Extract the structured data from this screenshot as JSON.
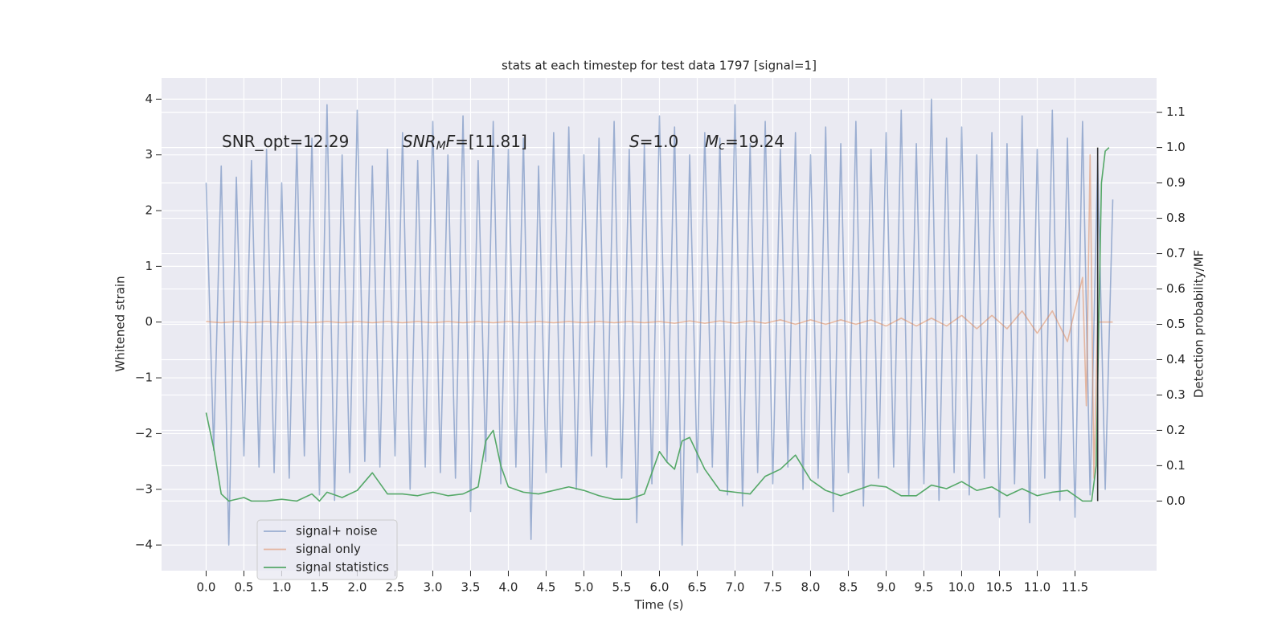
{
  "chart_data": {
    "type": "line",
    "title": "stats at each timestep for test data 1797 [signal=1]",
    "xlabel": "Time (s)",
    "ylabel": "Whitened strain",
    "y2label": "Detection probability/MF",
    "grid": true,
    "legend": "lower left",
    "xlim": [
      -0.59,
      12.58
    ],
    "ylim": [
      -4.46,
      4.38
    ],
    "y2lim": [
      -0.197,
      1.197
    ],
    "xticks": [
      {
        "value": 0,
        "label": "0.0"
      },
      0.5,
      {
        "value": 1,
        "label": "1.0"
      },
      1.5,
      {
        "value": 2,
        "label": "2.0"
      },
      2.5,
      {
        "value": 3,
        "label": "3.0"
      },
      3.5,
      {
        "value": 4,
        "label": "4.0"
      },
      4.5,
      {
        "value": 5,
        "label": "5.0"
      },
      5.5,
      {
        "value": 6,
        "label": "6.0"
      },
      6.5,
      {
        "value": 7,
        "label": "7.0"
      },
      7.5,
      {
        "value": 8,
        "label": "8.0"
      },
      8.5,
      {
        "value": 9,
        "label": "9.0"
      },
      9.5,
      {
        "value": 10,
        "label": "10.0"
      },
      10.5,
      {
        "value": 11,
        "label": "11.0"
      },
      11.5
    ],
    "yticks": [
      {
        "value": -4,
        "label": "−4"
      },
      {
        "value": -3,
        "label": "−3"
      },
      {
        "value": -2,
        "label": "−2"
      },
      {
        "value": -1,
        "label": "−1"
      },
      0,
      1,
      2,
      3,
      4
    ],
    "y2ticks": [
      {
        "value": 0,
        "label": "0.0"
      },
      0.1,
      0.2,
      0.3,
      0.4,
      0.5,
      0.6,
      0.7,
      0.8,
      0.9,
      {
        "value": 1,
        "label": "1.0"
      },
      1.1
    ],
    "series": [
      {
        "name": "signal+ noise",
        "color": "#4c72b0",
        "alpha": 0.5,
        "x": [
          0,
          0.1,
          0.2,
          0.3,
          0.4,
          0.5,
          0.6,
          0.7,
          0.8,
          0.9,
          1,
          1.1,
          1.2,
          1.3,
          1.4,
          1.5,
          1.6,
          1.7,
          1.8,
          1.9,
          2,
          2.1,
          2.2,
          2.3,
          2.4,
          2.5,
          2.6,
          2.7,
          2.8,
          2.9,
          3,
          3.1,
          3.2,
          3.3,
          3.4,
          3.5,
          3.6,
          3.7,
          3.8,
          3.9,
          4,
          4.1,
          4.2,
          4.3,
          4.4,
          4.5,
          4.6,
          4.7,
          4.8,
          4.9,
          5,
          5.1,
          5.2,
          5.3,
          5.4,
          5.5,
          5.6,
          5.7,
          5.8,
          5.9,
          6,
          6.1,
          6.2,
          6.3,
          6.4,
          6.5,
          6.6,
          6.7,
          6.8,
          6.9,
          7,
          7.1,
          7.2,
          7.3,
          7.4,
          7.5,
          7.6,
          7.7,
          7.8,
          7.9,
          8,
          8.1,
          8.2,
          8.3,
          8.4,
          8.5,
          8.6,
          8.7,
          8.8,
          8.9,
          9,
          9.1,
          9.2,
          9.3,
          9.4,
          9.5,
          9.6,
          9.7,
          9.8,
          9.9,
          10,
          10.1,
          10.2,
          10.3,
          10.4,
          10.5,
          10.6,
          10.7,
          10.8,
          10.9,
          11,
          11.1,
          11.2,
          11.3,
          11.4,
          11.5,
          11.6,
          11.7,
          11.8,
          11.9,
          12
        ],
        "values": [
          2.5,
          -2.3,
          2.8,
          -4.0,
          2.6,
          -2.4,
          2.9,
          -2.6,
          3.1,
          -2.7,
          2.5,
          -2.8,
          3.2,
          -2.4,
          3.3,
          -3.1,
          3.9,
          -3.2,
          3.0,
          -2.7,
          3.8,
          -2.5,
          2.8,
          -2.6,
          3.1,
          -2.4,
          3.4,
          -3.0,
          2.9,
          -2.6,
          3.6,
          -2.7,
          3.0,
          -2.8,
          3.7,
          -3.4,
          2.9,
          -2.5,
          3.6,
          -2.9,
          3.1,
          -2.6,
          3.3,
          -3.9,
          2.8,
          -2.7,
          3.4,
          -2.6,
          3.5,
          -3.0,
          3.0,
          -2.4,
          3.3,
          -2.6,
          3.6,
          -2.8,
          3.1,
          -3.6,
          3.2,
          -2.9,
          3.7,
          -2.5,
          3.5,
          -4.0,
          3.0,
          -2.7,
          3.4,
          -2.6,
          3.3,
          -3.1,
          3.9,
          -3.3,
          3.2,
          -2.7,
          3.6,
          -2.9,
          3.1,
          -2.6,
          3.4,
          -3.0,
          3.0,
          -2.8,
          3.5,
          -3.4,
          3.2,
          -2.7,
          3.6,
          -3.3,
          3.1,
          -2.8,
          3.4,
          -2.6,
          3.8,
          -3.1,
          3.2,
          -2.9,
          4.0,
          -3.2,
          3.3,
          -2.7,
          3.5,
          -3.1,
          3.0,
          -2.8,
          3.4,
          -3.5,
          3.2,
          -2.9,
          3.7,
          -3.6,
          3.1,
          -2.8,
          3.8,
          -3.2,
          3.3,
          -3.5,
          3.6,
          -3.1,
          2.9,
          -3.0,
          2.2
        ]
      },
      {
        "name": "signal only",
        "color": "#dd8452",
        "alpha": 0.5,
        "x": [
          0,
          0.2,
          0.4,
          0.6,
          0.8,
          1,
          1.2,
          1.4,
          1.6,
          1.8,
          2,
          2.2,
          2.4,
          2.6,
          2.8,
          3,
          3.2,
          3.4,
          3.6,
          3.8,
          4,
          4.2,
          4.4,
          4.6,
          4.8,
          5,
          5.2,
          5.4,
          5.6,
          5.8,
          6,
          6.2,
          6.4,
          6.6,
          6.8,
          7,
          7.2,
          7.4,
          7.6,
          7.8,
          8,
          8.2,
          8.4,
          8.6,
          8.8,
          9,
          9.2,
          9.4,
          9.6,
          9.8,
          10,
          10.2,
          10.4,
          10.6,
          10.8,
          11,
          11.2,
          11.4,
          11.6,
          11.65,
          11.7,
          11.75,
          11.8,
          12
        ],
        "values": [
          0.01,
          -0.01,
          0.01,
          -0.01,
          0.01,
          -0.01,
          0.01,
          -0.01,
          0.01,
          -0.01,
          0.01,
          -0.01,
          0.01,
          -0.01,
          0.01,
          -0.01,
          0.01,
          -0.01,
          0.01,
          -0.01,
          0.01,
          -0.01,
          0.01,
          -0.01,
          0.01,
          -0.01,
          0.01,
          -0.01,
          0.01,
          -0.01,
          0.01,
          -0.02,
          0.02,
          -0.02,
          0.02,
          -0.02,
          0.02,
          -0.02,
          0.04,
          -0.04,
          0.04,
          -0.04,
          0.04,
          -0.04,
          0.04,
          -0.07,
          0.07,
          -0.07,
          0.07,
          -0.07,
          0.12,
          -0.12,
          0.12,
          -0.12,
          0.2,
          -0.2,
          0.2,
          -0.35,
          0.8,
          -1.5,
          3.0,
          -2.8,
          0,
          0
        ]
      },
      {
        "name": "signal statistics",
        "color": "#55a868",
        "alpha": 1,
        "axis": "y2",
        "x": [
          0,
          0.1,
          0.2,
          0.3,
          0.5,
          0.6,
          0.8,
          1.0,
          1.2,
          1.4,
          1.5,
          1.6,
          1.8,
          2.0,
          2.2,
          2.4,
          2.6,
          2.8,
          3.0,
          3.2,
          3.4,
          3.6,
          3.7,
          3.8,
          3.9,
          4.0,
          4.2,
          4.4,
          4.6,
          4.8,
          5.0,
          5.2,
          5.4,
          5.6,
          5.8,
          6.0,
          6.1,
          6.2,
          6.3,
          6.4,
          6.6,
          6.8,
          7.0,
          7.2,
          7.4,
          7.6,
          7.8,
          8.0,
          8.2,
          8.4,
          8.6,
          8.8,
          9.0,
          9.2,
          9.4,
          9.6,
          9.8,
          10.0,
          10.2,
          10.4,
          10.6,
          10.8,
          11.0,
          11.2,
          11.4,
          11.6,
          11.72,
          11.78,
          11.85,
          11.9,
          11.95
        ],
        "values": [
          0.25,
          0.15,
          0.02,
          0.0,
          0.01,
          0.0,
          0.0,
          0.005,
          0.0,
          0.02,
          0.0,
          0.025,
          0.01,
          0.03,
          0.08,
          0.02,
          0.02,
          0.015,
          0.025,
          0.015,
          0.02,
          0.04,
          0.17,
          0.2,
          0.1,
          0.04,
          0.025,
          0.02,
          0.03,
          0.04,
          0.03,
          0.015,
          0.005,
          0.005,
          0.02,
          0.14,
          0.11,
          0.09,
          0.17,
          0.18,
          0.09,
          0.03,
          0.025,
          0.02,
          0.07,
          0.09,
          0.13,
          0.06,
          0.03,
          0.015,
          0.03,
          0.045,
          0.04,
          0.015,
          0.015,
          0.045,
          0.035,
          0.055,
          0.03,
          0.04,
          0.015,
          0.035,
          0.015,
          0.025,
          0.03,
          0.0,
          0.0,
          0.1,
          0.9,
          0.99,
          1.0
        ]
      }
    ],
    "vlines": [
      {
        "x": 11.8,
        "ymin": 0,
        "ymax": 1,
        "axis": "y2",
        "color": "#333333"
      }
    ],
    "annotations": [
      {
        "parts": [
          {
            "text": "SNR_opt=12.29"
          }
        ]
      },
      {
        "parts": [
          {
            "text": "SNR",
            "italic": true
          },
          {
            "text": "M",
            "italic": true,
            "sub": true
          },
          {
            "text": "F",
            "italic": true
          },
          {
            "text": "=[11.81]"
          }
        ]
      },
      {
        "parts": [
          {
            "text": "S",
            "italic": true
          },
          {
            "text": "=1.0"
          }
        ]
      },
      {
        "parts": [
          {
            "text": "M",
            "italic": true
          },
          {
            "text": "c",
            "italic": true,
            "sub": true
          },
          {
            "text": "=19.24"
          }
        ]
      }
    ]
  }
}
